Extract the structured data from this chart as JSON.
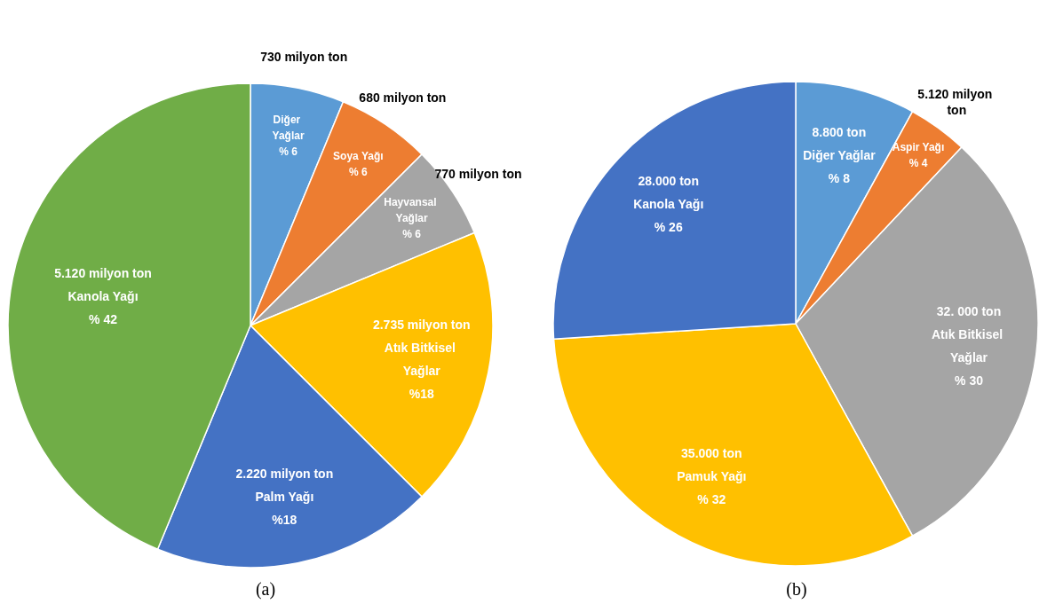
{
  "chart_data": [
    {
      "type": "pie",
      "title": "(a)",
      "categories": [
        "Diğer Yağlar",
        "Soya Yağı",
        "Hayvansal Yağlar",
        "Atık Bitkisel Yağlar",
        "Palm Yağı",
        "Kanola Yağı"
      ],
      "values": [
        6,
        6,
        6,
        18,
        18,
        42
      ],
      "colors": [
        "#5b9bd5",
        "#ed7d31",
        "#a5a5a5",
        "#ffc000",
        "#4472c4",
        "#70ad47"
      ],
      "value_labels": [
        "% 6",
        "% 6",
        "% 6",
        "%18",
        "%18",
        "% 42"
      ],
      "annotations": [
        "730 milyon ton",
        "680 milyon ton",
        "770 milyon ton",
        "2.735 milyon ton",
        "2.220 milyon ton",
        "5.120 milyon ton"
      ]
    },
    {
      "type": "pie",
      "title": "(b)",
      "categories": [
        "Diğer Yağlar",
        "Aspir Yağı",
        "Atık Bitkisel Yağlar",
        "Pamuk Yağı",
        "Kanola Yağı"
      ],
      "values": [
        8,
        4,
        30,
        32,
        26
      ],
      "colors": [
        "#5b9bd5",
        "#ed7d31",
        "#a5a5a5",
        "#ffc000",
        "#4472c4"
      ],
      "value_labels": [
        "% 8",
        "% 4",
        "% 30",
        "% 32",
        "% 26"
      ],
      "annotations": [
        "8.800 ton",
        "5.120 milyon ton",
        "32. 000 ton",
        "35.000 ton",
        "28.000 ton"
      ]
    }
  ]
}
